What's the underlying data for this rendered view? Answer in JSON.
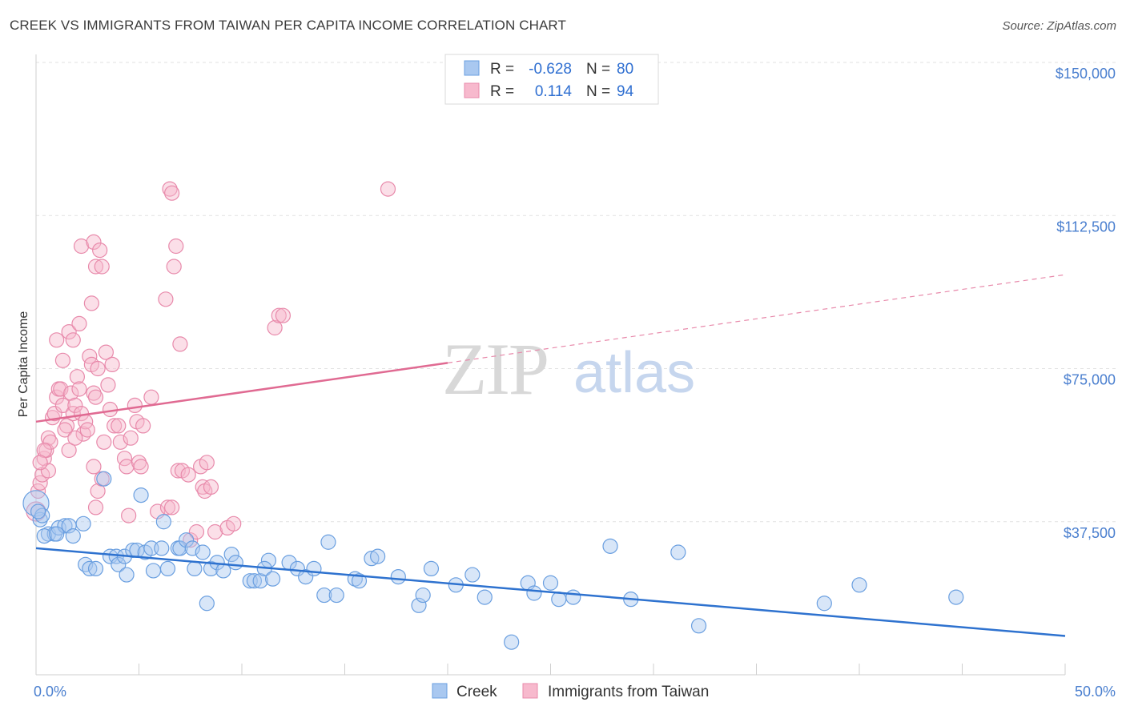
{
  "title": "CREEK VS IMMIGRANTS FROM TAIWAN PER CAPITA INCOME CORRELATION CHART",
  "source": "Source: ZipAtlas.com",
  "watermark": {
    "zip": "ZIP",
    "atlas": "atlas"
  },
  "legend": [
    {
      "r_label": "R =",
      "r_value": "-0.628",
      "n_label": "N =",
      "n_value": "80",
      "color": "#a9c8f0",
      "stroke": "#6a9fe0"
    },
    {
      "r_label": "R =",
      "r_value": "0.114",
      "n_label": "N =",
      "n_value": "94",
      "color": "#f7b9cd",
      "stroke": "#e88aab"
    }
  ],
  "bottom_legend": [
    "Creek",
    "Immigrants from Taiwan"
  ],
  "chart_data": {
    "type": "scatter",
    "title": "CREEK VS IMMIGRANTS FROM TAIWAN PER CAPITA INCOME CORRELATION CHART",
    "xlabel": "",
    "ylabel": "Per Capita Income",
    "xlim": [
      0,
      50
    ],
    "ylim": [
      0,
      150000
    ],
    "x_tick_labels": [
      "0.0%",
      "50.0%"
    ],
    "y_ticks": [
      37500,
      75000,
      112500,
      150000
    ],
    "y_tick_labels": [
      "$37,500",
      "$75,000",
      "$112,500",
      "$150,000"
    ],
    "grid": true,
    "series": [
      {
        "name": "Creek",
        "color": "#6a9fe0",
        "fill": "#a9c8f0",
        "trend": {
          "x": [
            0,
            50
          ],
          "y": [
            31000,
            9500
          ],
          "dashed_from": null
        },
        "points": [
          [
            0.0,
            42000
          ],
          [
            0.2,
            38000
          ],
          [
            0.6,
            34500
          ],
          [
            0.9,
            34500
          ],
          [
            1.1,
            36000
          ],
          [
            1.4,
            36500
          ],
          [
            1.6,
            36500
          ],
          [
            1.8,
            34000
          ],
          [
            2.3,
            37000
          ],
          [
            0.4,
            34000
          ],
          [
            1.0,
            34500
          ],
          [
            3.3,
            48000
          ],
          [
            5.1,
            44000
          ],
          [
            6.2,
            37500
          ],
          [
            2.4,
            27000
          ],
          [
            2.6,
            26000
          ],
          [
            2.9,
            26000
          ],
          [
            3.6,
            29000
          ],
          [
            3.9,
            29000
          ],
          [
            4.0,
            27000
          ],
          [
            4.3,
            29000
          ],
          [
            4.4,
            24500
          ],
          [
            4.7,
            30500
          ],
          [
            4.9,
            30500
          ],
          [
            5.3,
            30000
          ],
          [
            5.6,
            31000
          ],
          [
            5.7,
            25500
          ],
          [
            6.1,
            31000
          ],
          [
            6.4,
            26000
          ],
          [
            6.9,
            31000
          ],
          [
            7.0,
            31000
          ],
          [
            7.3,
            33000
          ],
          [
            7.6,
            31000
          ],
          [
            7.7,
            26000
          ],
          [
            8.1,
            30000
          ],
          [
            8.3,
            17500
          ],
          [
            8.5,
            26000
          ],
          [
            8.8,
            27500
          ],
          [
            9.1,
            25500
          ],
          [
            9.5,
            29500
          ],
          [
            9.7,
            27500
          ],
          [
            10.4,
            23000
          ],
          [
            10.6,
            23000
          ],
          [
            10.9,
            23000
          ],
          [
            11.3,
            28000
          ],
          [
            11.1,
            26000
          ],
          [
            11.5,
            23500
          ],
          [
            12.3,
            27500
          ],
          [
            12.7,
            26000
          ],
          [
            13.1,
            24000
          ],
          [
            13.5,
            26000
          ],
          [
            14.2,
            32500
          ],
          [
            14.0,
            19500
          ],
          [
            14.6,
            19500
          ],
          [
            15.5,
            23500
          ],
          [
            15.7,
            23000
          ],
          [
            16.3,
            28500
          ],
          [
            16.6,
            29000
          ],
          [
            17.6,
            24000
          ],
          [
            18.6,
            17000
          ],
          [
            18.8,
            19500
          ],
          [
            19.2,
            26000
          ],
          [
            20.4,
            22000
          ],
          [
            21.2,
            24500
          ],
          [
            21.8,
            19000
          ],
          [
            23.1,
            8000
          ],
          [
            23.9,
            22500
          ],
          [
            24.2,
            20000
          ],
          [
            25.0,
            22500
          ],
          [
            25.4,
            18500
          ],
          [
            26.1,
            19000
          ],
          [
            27.9,
            31500
          ],
          [
            28.9,
            18500
          ],
          [
            31.2,
            30000
          ],
          [
            32.2,
            12000
          ],
          [
            38.3,
            17500
          ],
          [
            40.0,
            22000
          ],
          [
            44.7,
            19000
          ],
          [
            0.3,
            39000
          ],
          [
            0.1,
            40000
          ]
        ]
      },
      {
        "name": "Immigrants from Taiwan",
        "color": "#e88aab",
        "fill": "#f7b9cd",
        "trend": {
          "x": [
            0,
            50
          ],
          "y": [
            62000,
            98000
          ],
          "dashed_from": 20
        },
        "points": [
          [
            0.0,
            40000
          ],
          [
            0.1,
            45000
          ],
          [
            0.2,
            47000
          ],
          [
            0.3,
            49000
          ],
          [
            0.4,
            53000
          ],
          [
            0.5,
            55000
          ],
          [
            0.6,
            58000
          ],
          [
            0.7,
            57000
          ],
          [
            0.8,
            63000
          ],
          [
            0.9,
            64000
          ],
          [
            1.0,
            68000
          ],
          [
            1.1,
            70000
          ],
          [
            1.2,
            70000
          ],
          [
            1.3,
            66000
          ],
          [
            1.5,
            61000
          ],
          [
            1.6,
            55000
          ],
          [
            1.7,
            69000
          ],
          [
            1.8,
            64000
          ],
          [
            1.9,
            66000
          ],
          [
            2.0,
            73000
          ],
          [
            2.1,
            70000
          ],
          [
            2.2,
            64000
          ],
          [
            2.3,
            59000
          ],
          [
            2.4,
            62000
          ],
          [
            2.5,
            60000
          ],
          [
            2.6,
            78000
          ],
          [
            2.7,
            76000
          ],
          [
            2.8,
            69000
          ],
          [
            2.9,
            68000
          ],
          [
            3.0,
            75000
          ],
          [
            1.0,
            82000
          ],
          [
            1.3,
            77000
          ],
          [
            1.6,
            84000
          ],
          [
            1.8,
            82000
          ],
          [
            2.1,
            86000
          ],
          [
            2.7,
            91000
          ],
          [
            2.2,
            105000
          ],
          [
            2.8,
            106000
          ],
          [
            2.9,
            100000
          ],
          [
            3.1,
            104000
          ],
          [
            3.2,
            100000
          ],
          [
            3.4,
            79000
          ],
          [
            3.5,
            71000
          ],
          [
            3.7,
            76000
          ],
          [
            3.3,
            57000
          ],
          [
            3.8,
            61000
          ],
          [
            4.1,
            57000
          ],
          [
            4.3,
            53000
          ],
          [
            4.4,
            51000
          ],
          [
            4.6,
            58000
          ],
          [
            4.8,
            66000
          ],
          [
            4.9,
            62000
          ],
          [
            5.0,
            52000
          ],
          [
            5.1,
            51000
          ],
          [
            5.2,
            61000
          ],
          [
            5.6,
            68000
          ],
          [
            3.0,
            45000
          ],
          [
            3.2,
            48000
          ],
          [
            2.8,
            51000
          ],
          [
            2.9,
            41000
          ],
          [
            4.5,
            39000
          ],
          [
            5.9,
            40000
          ],
          [
            6.4,
            41000
          ],
          [
            6.6,
            41000
          ],
          [
            6.9,
            50000
          ],
          [
            7.1,
            50000
          ],
          [
            7.4,
            49000
          ],
          [
            7.5,
            33000
          ],
          [
            7.8,
            35000
          ],
          [
            8.0,
            51000
          ],
          [
            8.1,
            46000
          ],
          [
            8.2,
            45000
          ],
          [
            8.3,
            52000
          ],
          [
            8.5,
            46000
          ],
          [
            8.7,
            35000
          ],
          [
            9.3,
            36000
          ],
          [
            9.6,
            37000
          ],
          [
            6.3,
            92000
          ],
          [
            6.5,
            119000
          ],
          [
            6.6,
            118000
          ],
          [
            6.7,
            100000
          ],
          [
            6.8,
            105000
          ],
          [
            7.0,
            81000
          ],
          [
            11.6,
            85000
          ],
          [
            11.8,
            88000
          ],
          [
            12.0,
            88000
          ],
          [
            17.1,
            119000
          ],
          [
            0.4,
            55000
          ],
          [
            0.6,
            50000
          ],
          [
            1.4,
            60000
          ],
          [
            1.9,
            58000
          ],
          [
            3.6,
            65000
          ],
          [
            4.0,
            61000
          ],
          [
            0.2,
            52000
          ]
        ]
      }
    ]
  }
}
